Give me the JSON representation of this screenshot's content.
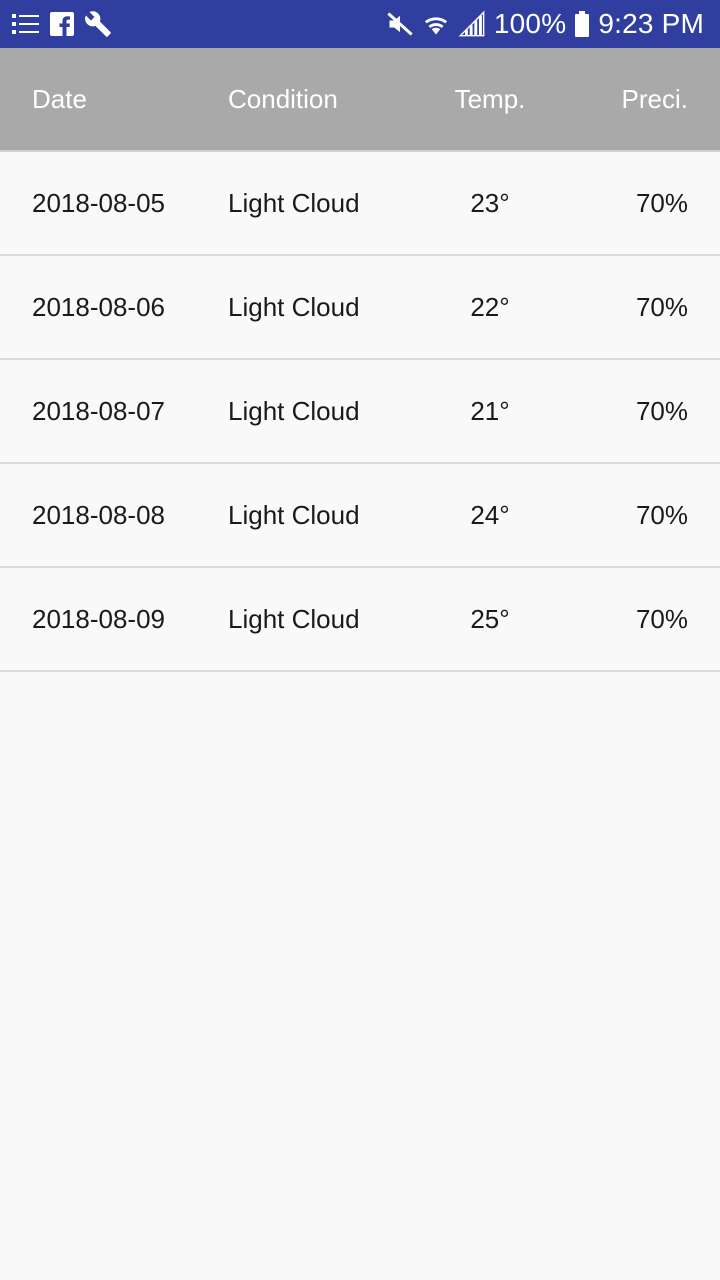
{
  "status_bar": {
    "left_icons": [
      "list-icon",
      "facebook-icon",
      "wrench-icon"
    ],
    "right_icons": [
      "mute-icon",
      "wifi-icon",
      "signal-icon",
      "battery-icon"
    ],
    "battery": "100%",
    "time": "9:23 PM",
    "color": "#303f9f"
  },
  "table": {
    "header_color": "#a9a9a9",
    "headers": {
      "date": "Date",
      "condition": "Condition",
      "temp": "Temp.",
      "preci": "Preci."
    },
    "rows": [
      {
        "date": "2018-08-05",
        "condition": "Light Cloud",
        "temp": "23°",
        "preci": "70%"
      },
      {
        "date": "2018-08-06",
        "condition": "Light Cloud",
        "temp": "22°",
        "preci": "70%"
      },
      {
        "date": "2018-08-07",
        "condition": "Light Cloud",
        "temp": "21°",
        "preci": "70%"
      },
      {
        "date": "2018-08-08",
        "condition": "Light Cloud",
        "temp": "24°",
        "preci": "70%"
      },
      {
        "date": "2018-08-09",
        "condition": "Light Cloud",
        "temp": "25°",
        "preci": "70%"
      }
    ]
  }
}
